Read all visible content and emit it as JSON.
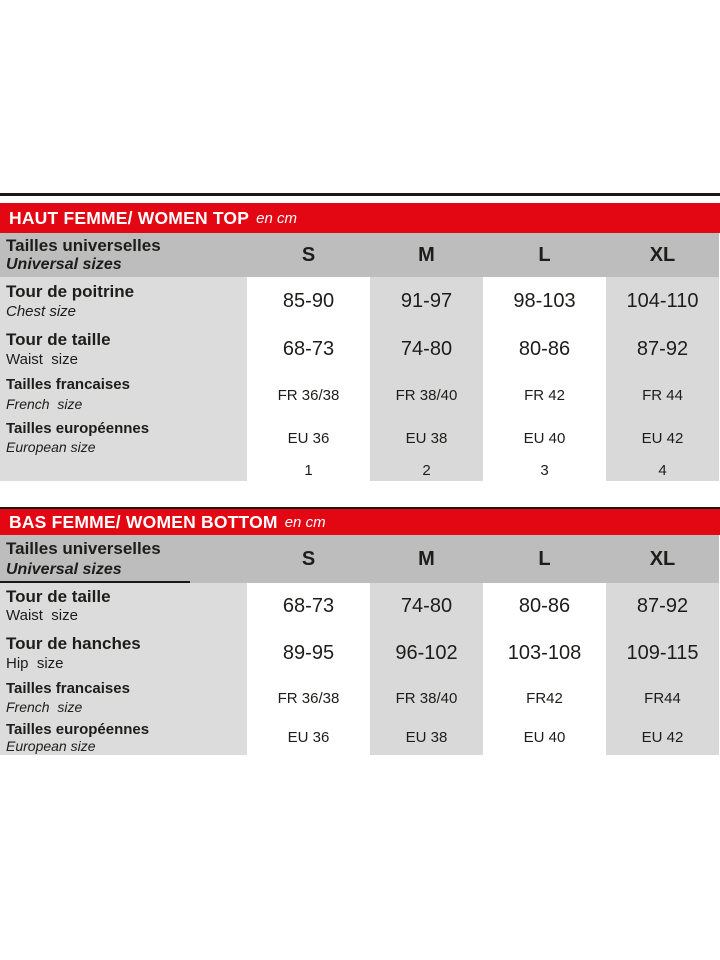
{
  "colors": {
    "brand_red": "#e30613",
    "header_gray": "#bdbdbd",
    "label_gray": "#dcdcdc",
    "cell_gray": "#d9d9d9",
    "line_black": "#191919"
  },
  "tables": [
    {
      "title": "HAUT FEMME/ WOMEN TOP",
      "unit": "en cm",
      "header": {
        "label_fr": "Tailles universelles",
        "label_en": "Universal sizes",
        "columns": [
          "S",
          "M",
          "L",
          "XL"
        ]
      },
      "rows": [
        {
          "label_fr": "Tour de poitrine",
          "label_en": "Chest size",
          "values": [
            "85-90",
            "91-97",
            "98-103",
            "104-110"
          ]
        },
        {
          "label_fr": "Tour de taille",
          "label_en": "Waist  size",
          "values": [
            "68-73",
            "74-80",
            "80-86",
            "87-92"
          ]
        },
        {
          "label_fr": "Tailles francaises",
          "label_en": "French  size",
          "values": [
            "FR 36/38",
            "FR 38/40",
            "FR 42",
            "FR 44"
          ]
        },
        {
          "label_fr": "Tailles européennes",
          "label_en": "European size",
          "values": [
            "EU 36",
            "EU 38",
            "EU 40",
            "EU 42"
          ]
        },
        {
          "label_fr": "",
          "label_en": "",
          "values": [
            "1",
            "2",
            "3",
            "4"
          ]
        }
      ]
    },
    {
      "title": "BAS FEMME/ WOMEN BOTTOM",
      "unit": "en cm",
      "header": {
        "label_fr": "Tailles universelles",
        "label_en": "Universal sizes",
        "columns": [
          "S",
          "M",
          "L",
          "XL"
        ]
      },
      "rows": [
        {
          "label_fr": "Tour de taille",
          "label_en": "Waist  size",
          "values": [
            "68-73",
            "74-80",
            "80-86",
            "87-92"
          ]
        },
        {
          "label_fr": "Tour de hanches",
          "label_en": "Hip  size",
          "values": [
            "89-95",
            "96-102",
            "103-108",
            "109-115"
          ]
        },
        {
          "label_fr": "Tailles francaises",
          "label_en": "French  size",
          "values": [
            "FR 36/38",
            "FR 38/40",
            "FR42",
            "FR44"
          ]
        },
        {
          "label_fr": "Tailles européennes",
          "label_en": "European size",
          "values": [
            "EU 36",
            "EU 38",
            "EU 40",
            "EU 42"
          ]
        }
      ]
    }
  ]
}
